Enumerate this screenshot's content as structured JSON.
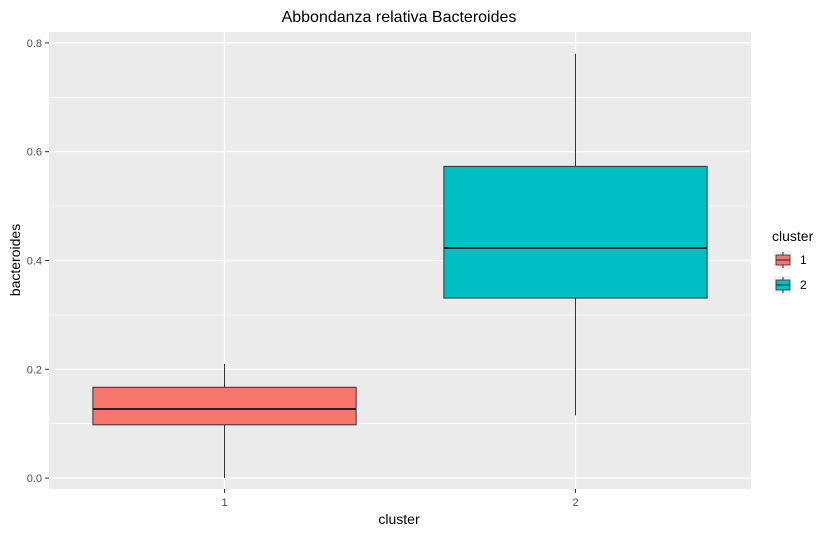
{
  "chart_data": {
    "type": "boxplot",
    "title": "Abbondanza relativa Bacteroides",
    "xlabel": "cluster",
    "ylabel": "bacteroides",
    "categories": [
      "1",
      "2"
    ],
    "ylim": [
      -0.02,
      0.82
    ],
    "yticks": [
      0.0,
      0.2,
      0.4,
      0.6,
      0.8
    ],
    "ytick_labels": [
      "0.0",
      "0.2",
      "0.4",
      "0.6",
      "0.8"
    ],
    "series": [
      {
        "name": "1",
        "color": "#F8766D",
        "min": 0.0,
        "q1": 0.098,
        "median": 0.127,
        "q3": 0.167,
        "max": 0.21
      },
      {
        "name": "2",
        "color": "#00BFC4",
        "min": 0.115,
        "q1": 0.331,
        "median": 0.423,
        "q3": 0.573,
        "max": 0.78
      }
    ],
    "legend": {
      "title": "cluster",
      "position": "right",
      "entries": [
        "1",
        "2"
      ]
    },
    "panel_background": "#EBEBEB",
    "grid": true
  }
}
